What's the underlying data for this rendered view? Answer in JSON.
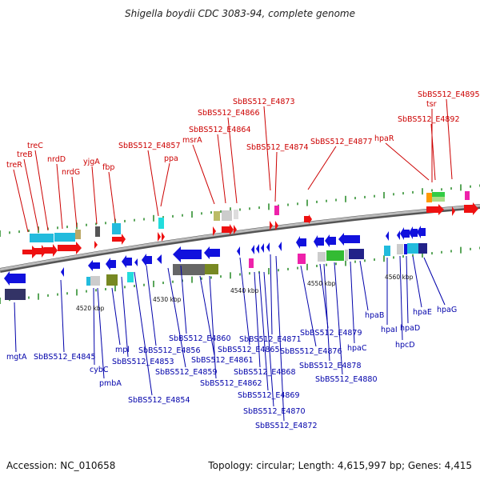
{
  "title": "Shigella boydii CDC 3083-94, complete genome",
  "accession": "Accession: NC_010658",
  "summary": "Topology: circular; Length: 4,615,997 bp; Genes: 4,415",
  "colors": {
    "forward_gene": "#ee1111",
    "reverse_gene": "#1111dd",
    "top_label": "#cc0000",
    "bottom_label": "#0000aa",
    "tick_green": "#228822",
    "backbone": "#999999"
  },
  "ticks": [
    {
      "label": "4520 kbp"
    },
    {
      "label": "4530 kbp"
    },
    {
      "label": "4540 kbp"
    },
    {
      "label": "4550 kbp"
    },
    {
      "label": "4560 kbp"
    }
  ],
  "top_genes": [
    {
      "label": "treR"
    },
    {
      "label": "treB"
    },
    {
      "label": "treC"
    },
    {
      "label": "nrdD"
    },
    {
      "label": "nrdG"
    },
    {
      "label": "yjgA"
    },
    {
      "label": "fbp"
    },
    {
      "label": "SbBS512_E4857"
    },
    {
      "label": "ppa"
    },
    {
      "label": "msrA"
    },
    {
      "label": "SbBS512_E4864"
    },
    {
      "label": "SbBS512_E4866"
    },
    {
      "label": "SbBS512_E4873"
    },
    {
      "label": "SbBS512_E4874"
    },
    {
      "label": "SbBS512_E4877"
    },
    {
      "label": "hpaR"
    },
    {
      "label": "SbBS512_E4892"
    },
    {
      "label": "tsr"
    },
    {
      "label": "SbBS512_E4895"
    }
  ],
  "bottom_genes": [
    {
      "label": "mgtA"
    },
    {
      "label": "SbBS512_E4845"
    },
    {
      "label": "cybC"
    },
    {
      "label": "pmbA"
    },
    {
      "label": "mpl"
    },
    {
      "label": "SbBS512_E4853"
    },
    {
      "label": "SbBS512_E4854"
    },
    {
      "label": "SbBS512_E4856"
    },
    {
      "label": "SbBS512_E4859"
    },
    {
      "label": "SbBS512_E4860"
    },
    {
      "label": "SbBS512_E4861"
    },
    {
      "label": "SbBS512_E4862"
    },
    {
      "label": "SbBS512_E4865"
    },
    {
      "label": "SbBS512_E4868"
    },
    {
      "label": "SbBS512_E4869"
    },
    {
      "label": "SbBS512_E4870"
    },
    {
      "label": "SbBS512_E4871"
    },
    {
      "label": "SbBS512_E4872"
    },
    {
      "label": "SbBS512_E4876"
    },
    {
      "label": "SbBS512_E4879"
    },
    {
      "label": "SbBS512_E4878"
    },
    {
      "label": "SbBS512_E4880"
    },
    {
      "label": "hpaC"
    },
    {
      "label": "hpaB"
    },
    {
      "label": "hpaI"
    },
    {
      "label": "hpcD"
    },
    {
      "label": "hpaD"
    },
    {
      "label": "hpaE"
    },
    {
      "label": "hpaG"
    }
  ]
}
